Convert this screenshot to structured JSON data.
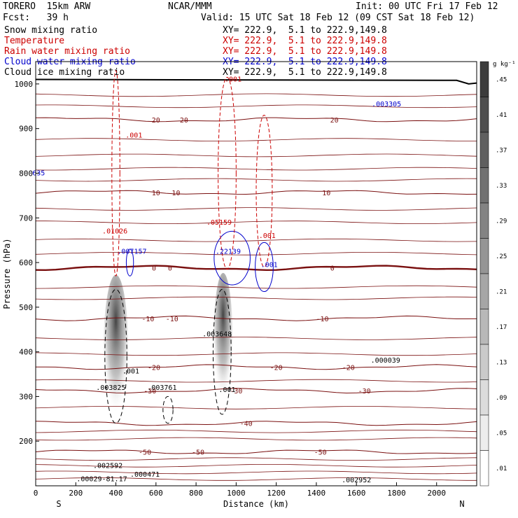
{
  "header": {
    "model": "TORERO  15km ARW",
    "center": "NCAR/MMM",
    "init": "Init: 00 UTC Fri 17 Feb 12",
    "fcst": "Fcst:   39 h",
    "valid": "Valid: 15 UTC Sat 18 Feb 12 (09 CST Sat 18 Feb 12)"
  },
  "legend": [
    {
      "label": "Snow mixing ratio",
      "xy": "XY= 222.9,  5.1 to 222.9,149.8",
      "color": "#000000"
    },
    {
      "label": "Temperature",
      "xy": "XY= 222.9,  5.1 to 222.9,149.8",
      "color": "#cc0000"
    },
    {
      "label": "Rain water mixing ratio",
      "xy": "XY= 222.9,  5.1 to 222.9,149.8",
      "color": "#cc0000"
    },
    {
      "label": "Cloud water mixing ratio",
      "xy": "XY= 222.9,  5.1 to 222.9,149.8",
      "color": "#0000cc"
    },
    {
      "label": "Cloud ice mixing ratio",
      "xy": "XY= 222.9,  5.1 to 222.9,149.8",
      "color": "#000000"
    }
  ],
  "chart_data": {
    "type": "cross-section",
    "xlabel": "Distance (km)",
    "ylabel": "Pressure (hPa)",
    "xlim": [
      0,
      2200
    ],
    "ylim": [
      1050,
      100
    ],
    "x_ticks": [
      0,
      200,
      400,
      600,
      800,
      1000,
      1200,
      1400,
      1600,
      1800,
      2000
    ],
    "y_ticks": [
      200,
      300,
      400,
      500,
      600,
      700,
      800,
      900,
      1000
    ],
    "end_labels": {
      "left": "S",
      "right": "N"
    },
    "colorbar": {
      "unit": "g kg⁻¹",
      "ticks": [
        ".45",
        ".41",
        ".37",
        ".33",
        ".29",
        ".25",
        ".21",
        ".17",
        ".13",
        ".09",
        ".05",
        ".01"
      ]
    },
    "temperature_isotherms": [
      {
        "temp": -50,
        "pressure": 176,
        "labels_x": [
          545,
          810,
          1420
        ]
      },
      {
        "temp": -40,
        "pressure": 240,
        "labels_x": [
          1050
        ]
      },
      {
        "temp": -30,
        "pressure": 313,
        "labels_x": [
          570,
          1000,
          1640
        ]
      },
      {
        "temp": -20,
        "pressure": 366,
        "labels_x": [
          590,
          1200,
          1560
        ]
      },
      {
        "temp": -10,
        "pressure": 475,
        "labels_x": [
          560,
          680,
          1430
        ]
      },
      {
        "temp": 0,
        "pressure": 588,
        "labels_x": [
          590,
          670,
          1480
        ]
      },
      {
        "temp": 10,
        "pressure": 757,
        "labels_x": [
          600,
          700,
          1450
        ]
      },
      {
        "temp": 20,
        "pressure": 920,
        "labels_x": [
          600,
          740,
          1490
        ]
      }
    ],
    "maxima_labels": [
      {
        "text": ".00029-81.17",
        "x": 330,
        "p": 110,
        "color": "#000000"
      },
      {
        "text": ".000471",
        "x": 545,
        "p": 120,
        "color": "#000000"
      },
      {
        "text": ".002592",
        "x": 360,
        "p": 140,
        "color": "#000000"
      },
      {
        "text": ".003825",
        "x": 375,
        "p": 315,
        "color": "#000000"
      },
      {
        "text": ".001",
        "x": 475,
        "p": 352,
        "color": "#000000"
      },
      {
        "text": ".003761",
        "x": 630,
        "p": 315,
        "color": "#000000"
      },
      {
        "text": ".001",
        "x": 955,
        "p": 310,
        "color": "#000000"
      },
      {
        "text": ".003648",
        "x": 905,
        "p": 435,
        "color": "#000000"
      },
      {
        "text": ".000039",
        "x": 1745,
        "p": 376,
        "color": "#000000"
      },
      {
        "text": ".002952",
        "x": 1600,
        "p": 108,
        "color": "#000000"
      },
      {
        "text": ".007157",
        "x": 480,
        "p": 620,
        "color": "#0000cc"
      },
      {
        "text": ".22139",
        "x": 960,
        "p": 620,
        "color": "#0000cc"
      },
      {
        "text": ".001",
        "x": 1165,
        "p": 590,
        "color": "#0000cc"
      },
      {
        "text": ".01026",
        "x": 395,
        "p": 665,
        "color": "#cc0000"
      },
      {
        "text": ".05159",
        "x": 915,
        "p": 685,
        "color": "#cc0000"
      },
      {
        "text": ".001",
        "x": 1155,
        "p": 655,
        "color": "#cc0000"
      },
      {
        "text": ".001",
        "x": 490,
        "p": 880,
        "color": "#cc0000"
      },
      {
        "text": ".001",
        "x": 985,
        "p": 1005,
        "color": "#cc0000"
      },
      {
        "text": ".003305",
        "x": 1750,
        "p": 950,
        "color": "#0000cc"
      },
      {
        "text": "635",
        "x": 15,
        "p": 795,
        "color": "#0000cc"
      }
    ]
  }
}
